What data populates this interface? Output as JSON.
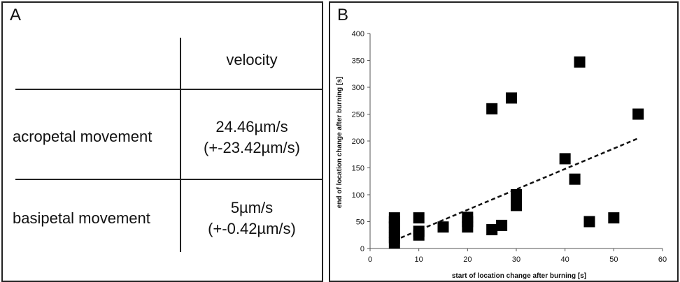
{
  "panel_a": {
    "label": "A",
    "header": "velocity",
    "rows": [
      {
        "name": "acropetal movement",
        "value": "24.46µm/s",
        "sd": "(+-23.42µm/s)"
      },
      {
        "name": "basipetal movement",
        "value": "5µm/s",
        "sd": "(+-0.42µm/s)"
      }
    ]
  },
  "panel_b": {
    "label": "B"
  },
  "chart_data": {
    "type": "scatter",
    "xlabel": "start of location change after burning [s]",
    "ylabel": "end of location change after burning [s]",
    "xlim": [
      0,
      60
    ],
    "ylim": [
      0,
      400
    ],
    "xticks": [
      0,
      10,
      20,
      30,
      40,
      50,
      60
    ],
    "yticks": [
      0,
      50,
      100,
      150,
      200,
      250,
      300,
      350,
      400
    ],
    "marker_color": "#000000",
    "grid": false,
    "legend": "none",
    "points": [
      {
        "x": 5,
        "y": 10
      },
      {
        "x": 5,
        "y": 20
      },
      {
        "x": 5,
        "y": 30
      },
      {
        "x": 5,
        "y": 40
      },
      {
        "x": 5,
        "y": 50
      },
      {
        "x": 5,
        "y": 57
      },
      {
        "x": 10,
        "y": 25
      },
      {
        "x": 10,
        "y": 32
      },
      {
        "x": 10,
        "y": 57
      },
      {
        "x": 15,
        "y": 40
      },
      {
        "x": 20,
        "y": 40
      },
      {
        "x": 20,
        "y": 50
      },
      {
        "x": 20,
        "y": 58
      },
      {
        "x": 25,
        "y": 35
      },
      {
        "x": 25,
        "y": 260
      },
      {
        "x": 27,
        "y": 43
      },
      {
        "x": 29,
        "y": 280
      },
      {
        "x": 30,
        "y": 80
      },
      {
        "x": 30,
        "y": 90
      },
      {
        "x": 30,
        "y": 100
      },
      {
        "x": 40,
        "y": 167
      },
      {
        "x": 42,
        "y": 129
      },
      {
        "x": 43,
        "y": 347
      },
      {
        "x": 45,
        "y": 50
      },
      {
        "x": 50,
        "y": 57
      },
      {
        "x": 55,
        "y": 250
      }
    ],
    "trendline": {
      "style": "dashed",
      "x": [
        5,
        55
      ],
      "y": [
        15,
        205
      ]
    }
  }
}
